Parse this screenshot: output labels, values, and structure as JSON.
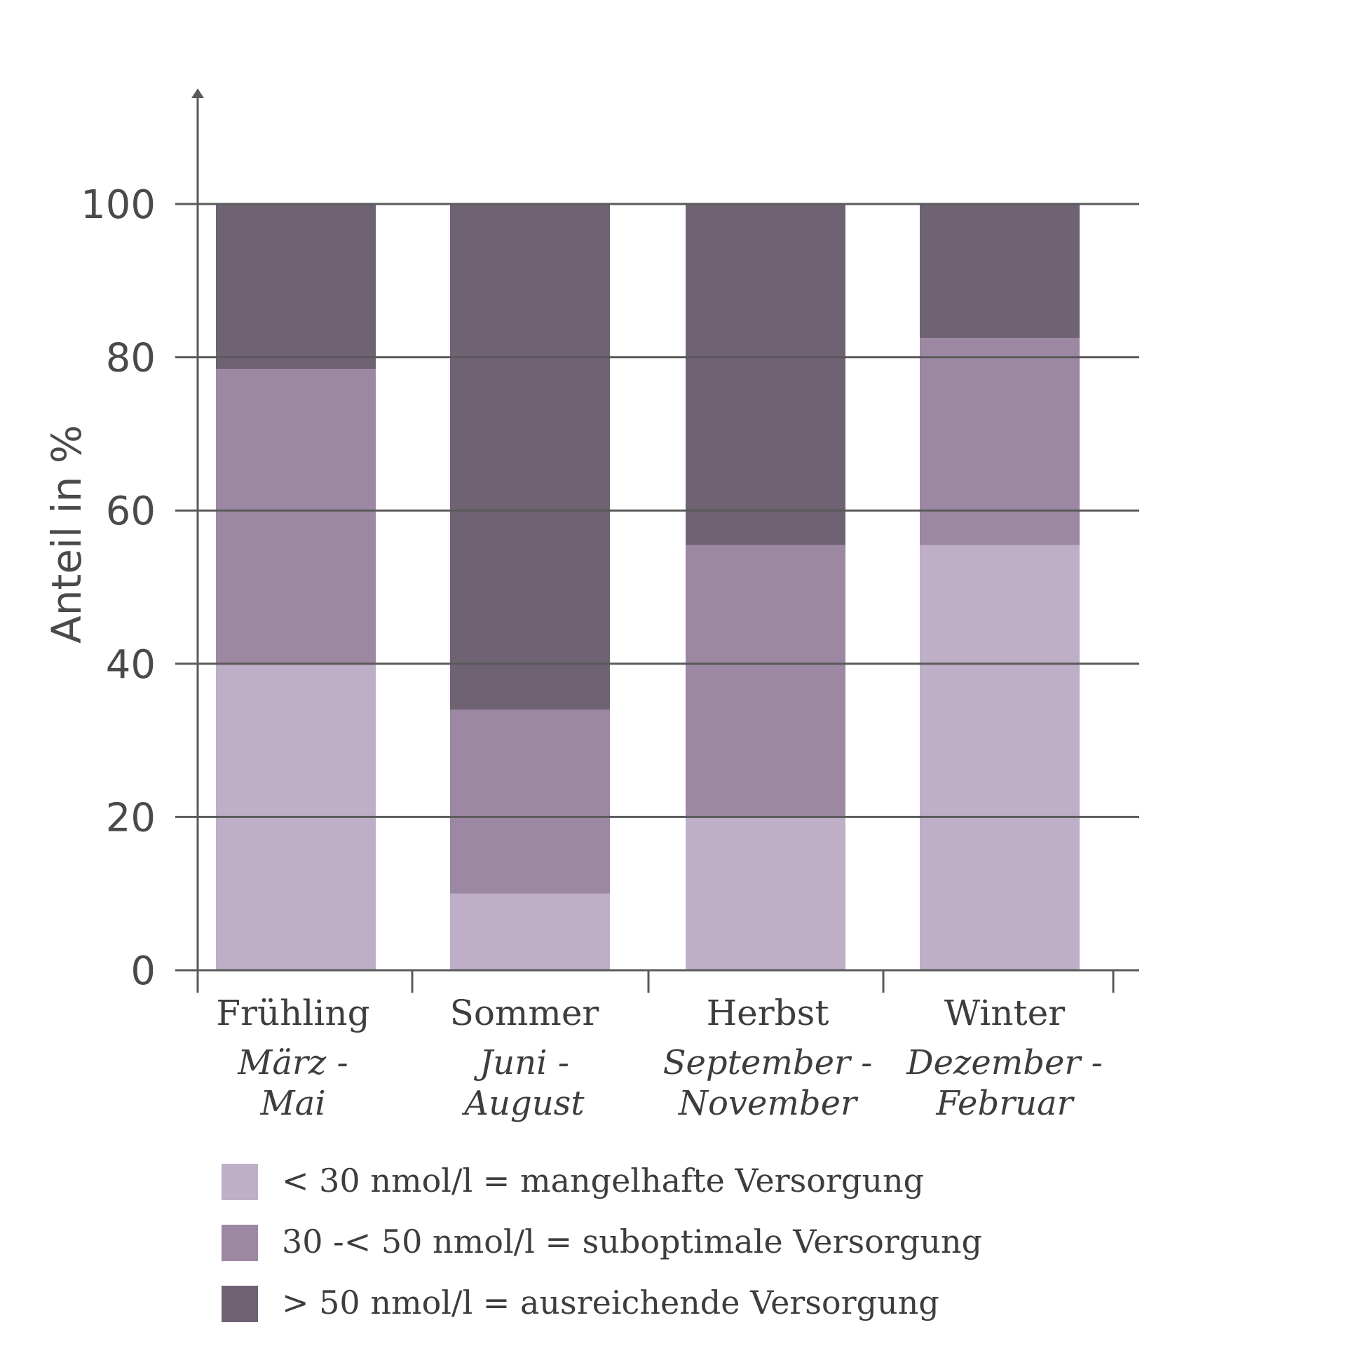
{
  "chart_data": {
    "type": "bar",
    "stacked": true,
    "title": "",
    "xlabel": "",
    "ylabel": "Anteil in %",
    "ylim": [
      0,
      100
    ],
    "yticks": [
      0,
      20,
      40,
      60,
      80,
      100
    ],
    "grid": true,
    "legend_position": "bottom",
    "categories": [
      "Frühling",
      "Sommer",
      "Herbst",
      "Winter"
    ],
    "category_subtitles": [
      [
        "März -",
        "Mai"
      ],
      [
        "Juni -",
        "August"
      ],
      [
        "September -",
        "November"
      ],
      [
        "Dezember -",
        "Februar"
      ]
    ],
    "series": [
      {
        "name": "< 30 nmol/l = mangelhafte Versorgung",
        "color": "#bfaec8",
        "values": [
          40,
          10,
          20,
          55.5
        ]
      },
      {
        "name": "30 -< 50 nmol/l = suboptimale Versorgung",
        "color": "#9d88a3",
        "values": [
          38.5,
          24,
          35.5,
          27
        ]
      },
      {
        "name": "> 50 nmol/l = ausreichende Versorgung",
        "color": "#6e6273",
        "values": [
          21.5,
          66,
          44.5,
          17.5
        ]
      }
    ],
    "axis_color": "#5a5a5a",
    "grid_color": "#5a5a5a"
  }
}
